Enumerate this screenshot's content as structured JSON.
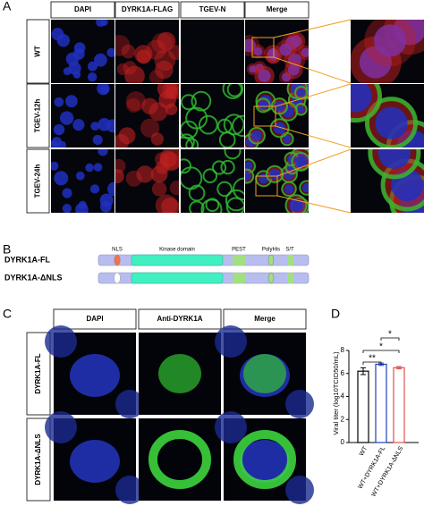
{
  "panel_labels": [
    "A",
    "B",
    "C",
    "D"
  ],
  "panel_a": {
    "columns": [
      "DAPI",
      "DYRK1A-FLAG",
      "TGEV-N",
      "Merge"
    ],
    "rows": [
      "WT",
      "TGEV-12h",
      "TGEV-24h"
    ]
  },
  "panel_b": {
    "domains": [
      "NLS",
      "Kinase domain",
      "PEST",
      "PolyHis",
      "S/T"
    ],
    "constructs": [
      "DYRK1A-FL",
      "DYRK1A-ΔNLS"
    ]
  },
  "panel_c": {
    "columns": [
      "DAPI",
      "Anti-DYRK1A",
      "Merge"
    ],
    "rows": [
      "DYRK1A-FL",
      "DYRK1A-ΔNLS"
    ]
  },
  "chart_data": {
    "type": "bar",
    "y_label": "Viral titer (log10TCID50/mL)",
    "categories": [
      "WT",
      "WT+DYRK1A-FL",
      "WT+DYRK1A-ΔNLS"
    ],
    "values": [
      6.2,
      6.8,
      6.5
    ],
    "errors": [
      0.3,
      0.1,
      0.1
    ],
    "colors": [
      "#000000",
      "#1f3fbf",
      "#e05050"
    ],
    "ylim": [
      0,
      8
    ],
    "yticks": [
      0,
      2,
      4,
      6,
      8
    ],
    "annotations": [
      "**",
      "*",
      "*"
    ]
  }
}
